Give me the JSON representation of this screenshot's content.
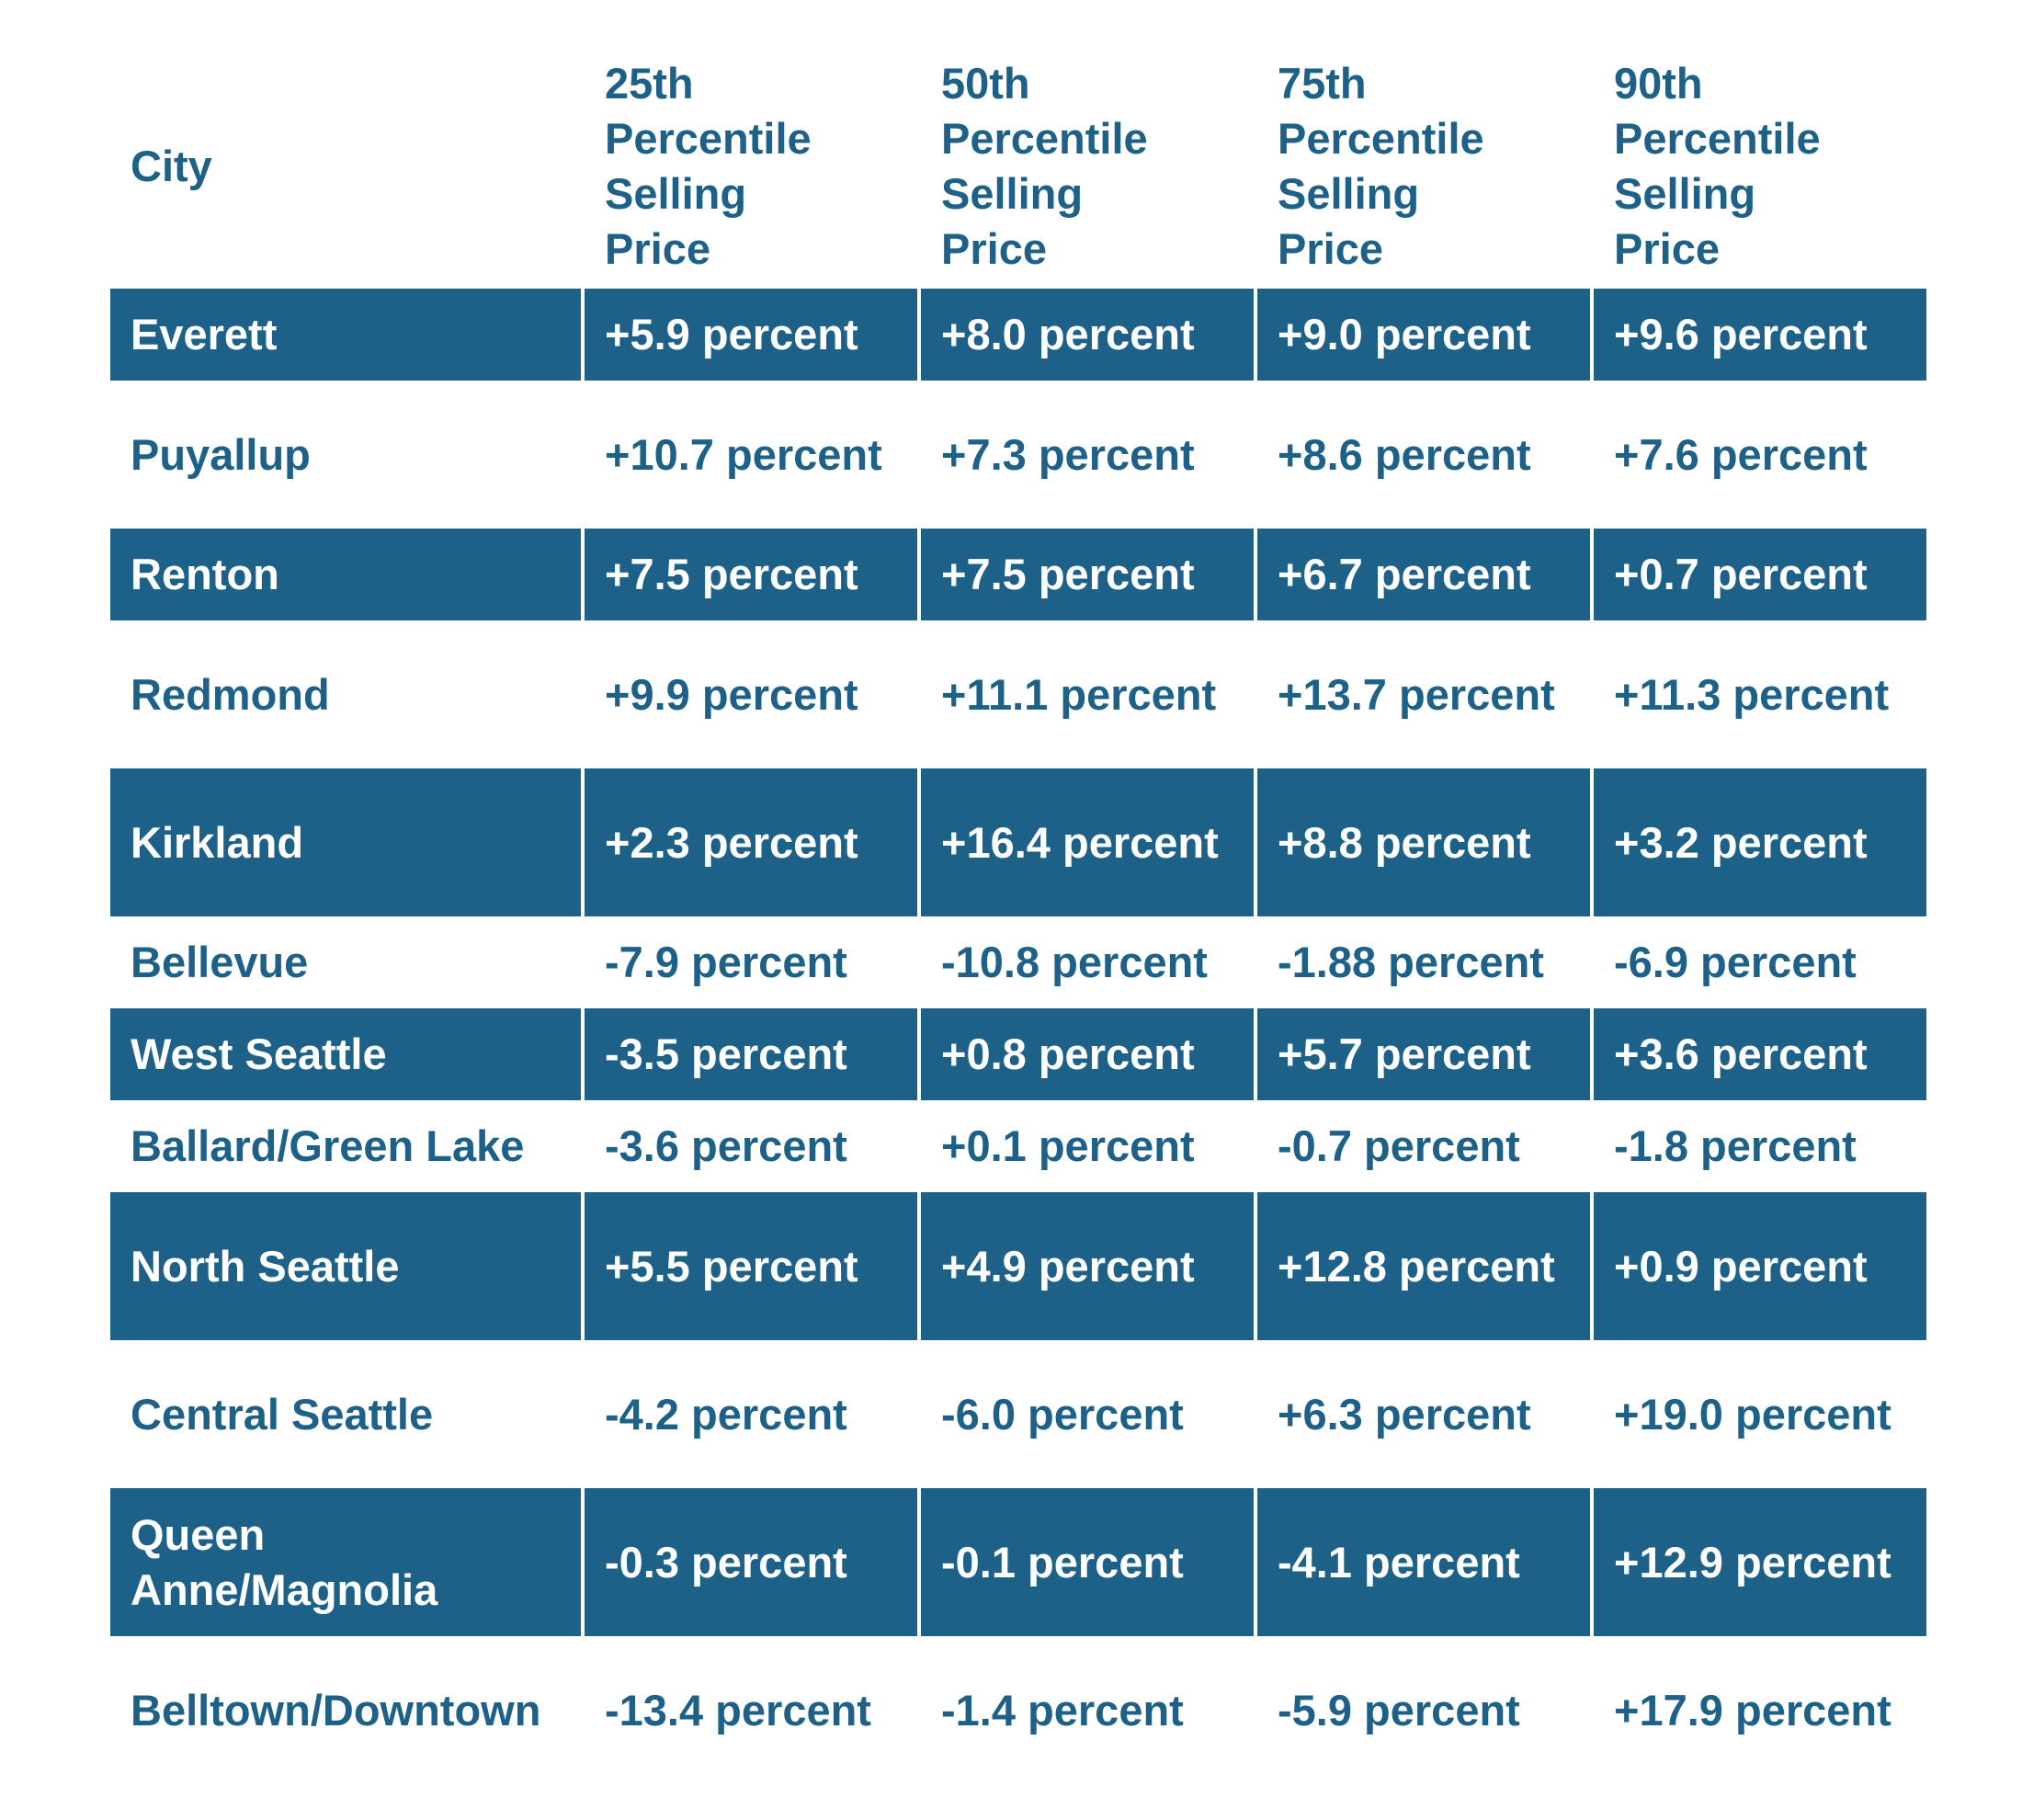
{
  "chart_data": {
    "type": "table",
    "headers": [
      "City",
      "25th Percentile Selling Price",
      "50th Percentile Selling Price",
      "75th Percentile Selling Price",
      "90th Percentile Selling Price"
    ],
    "header_lines": [
      [
        "City"
      ],
      [
        "25th",
        "Percentile",
        "Selling",
        "Price"
      ],
      [
        "50th",
        "Percentile",
        "Selling",
        "Price"
      ],
      [
        "75th",
        "Percentile",
        "Selling",
        "Price"
      ],
      [
        "90th",
        "Percentile",
        "Selling",
        "Price"
      ]
    ],
    "rows": [
      [
        "Everett",
        "+5.9 percent",
        "+8.0 percent",
        "+9.0 percent",
        "+9.6 percent"
      ],
      [
        "Puyallup",
        "+10.7 percent",
        "+7.3 percent",
        "+8.6 percent",
        "+7.6 percent"
      ],
      [
        "Renton",
        "+7.5 percent",
        "+7.5 percent",
        "+6.7 percent",
        "+0.7 percent"
      ],
      [
        "Redmond",
        "+9.9 percent",
        "+11.1 percent",
        "+13.7 percent",
        "+11.3 percent"
      ],
      [
        "Kirkland",
        "+2.3 percent",
        "+16.4 percent",
        "+8.8 percent",
        "+3.2 percent"
      ],
      [
        "Bellevue",
        "-7.9 percent",
        "-10.8 percent",
        "-1.88 percent",
        "-6.9 percent"
      ],
      [
        "West Seattle",
        "-3.5 percent",
        "+0.8 percent",
        "+5.7 percent",
        "+3.6 percent"
      ],
      [
        "Ballard/Green Lake",
        "-3.6 percent",
        "+0.1 percent",
        "-0.7 percent",
        "-1.8 percent"
      ],
      [
        "North Seattle",
        "+5.5 percent",
        "+4.9 percent",
        "+12.8 percent",
        "+0.9 percent"
      ],
      [
        "Central Seattle",
        "-4.2 percent",
        "-6.0 percent",
        "+6.3 percent",
        "+19.0 percent"
      ],
      [
        "Queen Anne/Magnolia",
        "-0.3 percent",
        "-0.1 percent",
        "-4.1 percent",
        "+12.9 percent"
      ],
      [
        "Belltown/Downtown",
        "-13.4 percent",
        "-1.4 percent",
        "-5.9 percent",
        "+17.9 percent"
      ]
    ]
  },
  "colors": {
    "primary": "#1d6189",
    "background": "#ffffff",
    "text_on_dark": "#ffffff"
  }
}
